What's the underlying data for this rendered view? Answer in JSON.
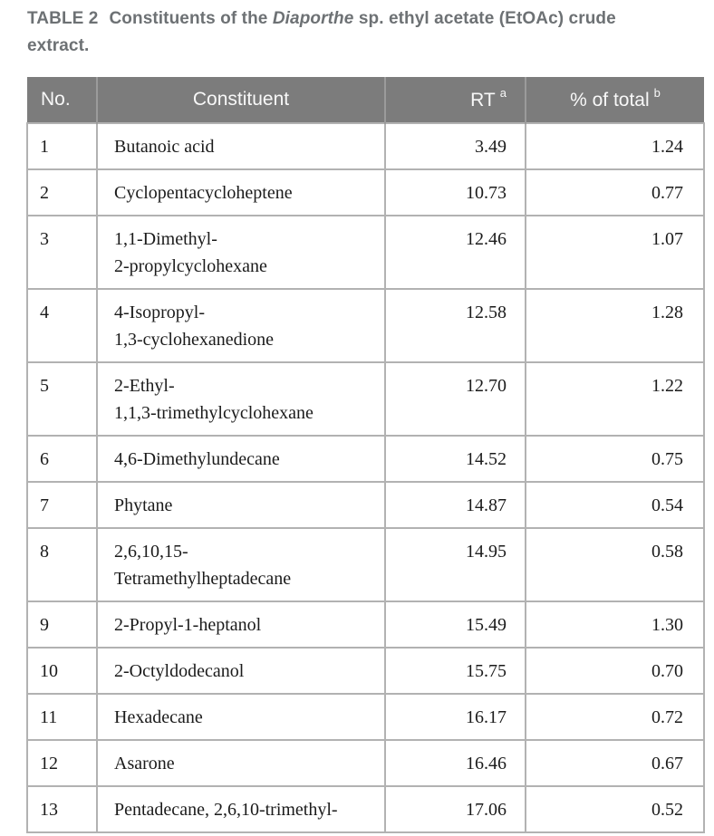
{
  "caption": {
    "label": "TABLE 2",
    "before_italic": "Constituents of the ",
    "italic": "Diaporthe",
    "after_italic": " sp. ethyl acetate (EtOAc) crude extract."
  },
  "table": {
    "columns": [
      {
        "label": "No.",
        "sup": ""
      },
      {
        "label": "Constituent",
        "sup": ""
      },
      {
        "label": "RT",
        "sup": "a"
      },
      {
        "label": "% of total",
        "sup": "b"
      }
    ],
    "rows": [
      {
        "no": "1",
        "constituent": "Butanoic acid",
        "rt": "3.49",
        "pct_of_total": "1.24"
      },
      {
        "no": "2",
        "constituent": "Cyclopentacycloheptene",
        "rt": "10.73",
        "pct_of_total": "0.77"
      },
      {
        "no": "3",
        "constituent": "1,1-Dimethyl-\n2-propylcyclohexane",
        "rt": "12.46",
        "pct_of_total": "1.07"
      },
      {
        "no": "4",
        "constituent": "4-Isopropyl-\n1,3-cyclohexanedione",
        "rt": "12.58",
        "pct_of_total": "1.28"
      },
      {
        "no": "5",
        "constituent": "2-Ethyl-\n1,1,3-trimethylcyclohexane",
        "rt": "12.70",
        "pct_of_total": "1.22"
      },
      {
        "no": "6",
        "constituent": "4,6-Dimethylundecane",
        "rt": "14.52",
        "pct_of_total": "0.75"
      },
      {
        "no": "7",
        "constituent": "Phytane",
        "rt": "14.87",
        "pct_of_total": "0.54"
      },
      {
        "no": "8",
        "constituent": "2,6,10,15-\nTetramethylheptadecane",
        "rt": "14.95",
        "pct_of_total": "0.58"
      },
      {
        "no": "9",
        "constituent": "2-Propyl-1-heptanol",
        "rt": "15.49",
        "pct_of_total": "1.30"
      },
      {
        "no": "10",
        "constituent": "2-Octyldodecanol",
        "rt": "15.75",
        "pct_of_total": "0.70"
      },
      {
        "no": "11",
        "constituent": "Hexadecane",
        "rt": "16.17",
        "pct_of_total": "0.72"
      },
      {
        "no": "12",
        "constituent": "Asarone",
        "rt": "16.46",
        "pct_of_total": "0.67"
      },
      {
        "no": "13",
        "constituent": "Pentadecane, 2,6,10-trimethyl-",
        "rt": "17.06",
        "pct_of_total": "0.52"
      }
    ]
  },
  "colors": {
    "header_bg": "#7c7c7c",
    "header_text": "#f8f8f8",
    "caption_text": "#6d7174",
    "body_text": "#1b1b1b",
    "border": "#b2b2b2"
  }
}
